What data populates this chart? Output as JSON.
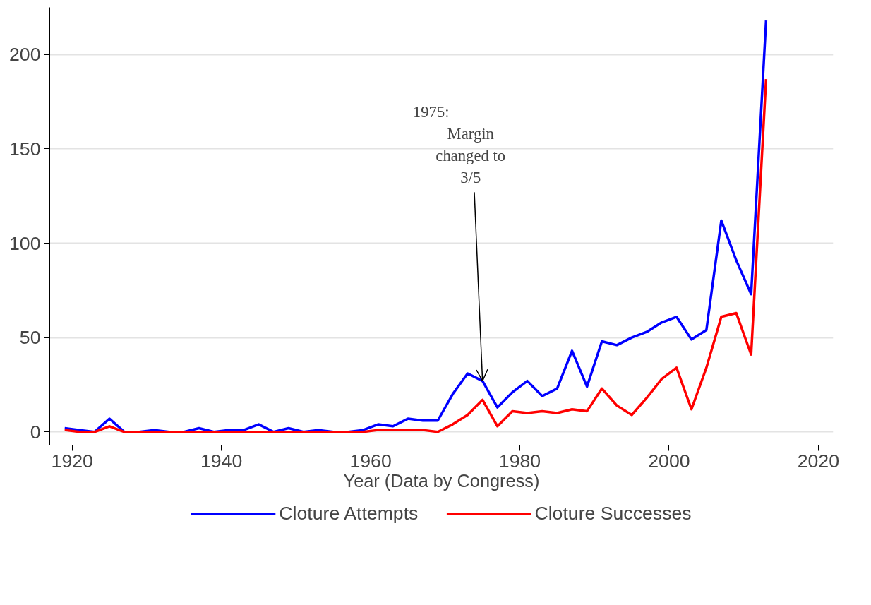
{
  "chart_data": {
    "type": "line",
    "xlabel": "Year (Data by Congress)",
    "x": [
      1919,
      1921,
      1923,
      1925,
      1927,
      1929,
      1931,
      1933,
      1935,
      1937,
      1939,
      1941,
      1943,
      1945,
      1947,
      1949,
      1951,
      1953,
      1955,
      1957,
      1959,
      1961,
      1963,
      1965,
      1967,
      1969,
      1971,
      1973,
      1975,
      1977,
      1979,
      1981,
      1983,
      1985,
      1987,
      1989,
      1991,
      1993,
      1995,
      1997,
      1999,
      2001,
      2003,
      2005,
      2007,
      2009,
      2011,
      2013
    ],
    "series": [
      {
        "name": "Cloture Attempts",
        "color": "#0000ff",
        "values": [
          2,
          1,
          0,
          7,
          0,
          0,
          1,
          0,
          0,
          2,
          0,
          1,
          1,
          4,
          0,
          2,
          0,
          1,
          0,
          0,
          1,
          4,
          3,
          7,
          6,
          6,
          20,
          31,
          27,
          13,
          21,
          27,
          19,
          23,
          43,
          24,
          48,
          46,
          50,
          53,
          58,
          61,
          49,
          54,
          112,
          91,
          73,
          218
        ]
      },
      {
        "name": "Cloture Successes",
        "color": "#ff0000",
        "values": [
          1,
          0,
          0,
          3,
          0,
          0,
          0,
          0,
          0,
          0,
          0,
          0,
          0,
          0,
          0,
          0,
          0,
          0,
          0,
          0,
          0,
          1,
          1,
          1,
          1,
          0,
          4,
          9,
          17,
          3,
          11,
          10,
          11,
          10,
          12,
          11,
          23,
          14,
          9,
          18,
          28,
          34,
          12,
          34,
          61,
          63,
          41,
          187
        ]
      }
    ],
    "xlim": [
      1917,
      2022
    ],
    "ylim": [
      -7,
      225
    ],
    "xticks": [
      1920,
      1940,
      1960,
      1980,
      2000,
      2020
    ],
    "yticks": [
      0,
      50,
      100,
      150,
      200
    ],
    "grid": "y",
    "legend": "bottom",
    "line_style": "solid",
    "marker": "none",
    "annotations": [
      "1975:",
      "Margin",
      "changed to",
      {
        "text": "3/5",
        "x": 1975,
        "y": 27
      }
    ]
  }
}
